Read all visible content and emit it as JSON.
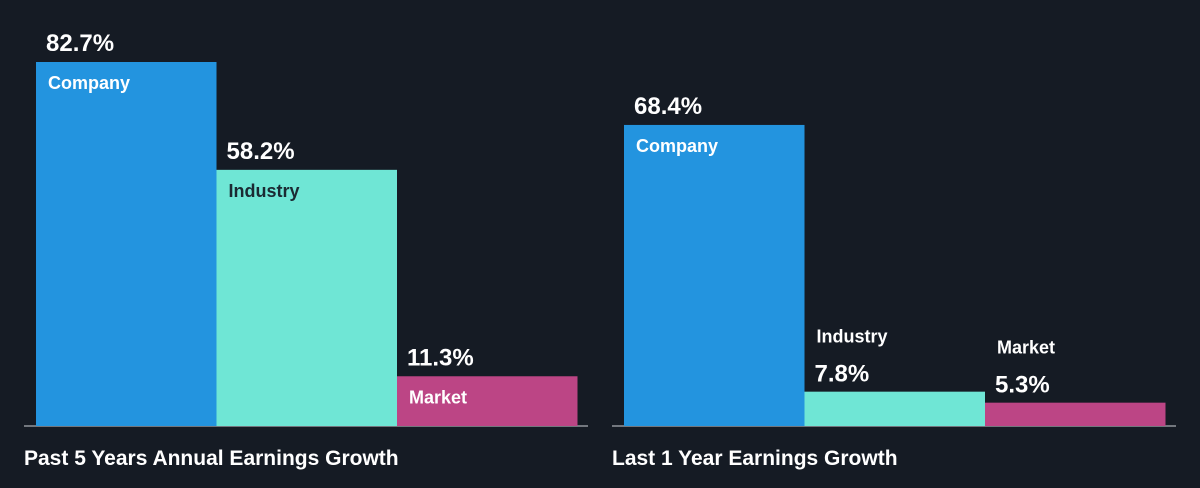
{
  "chart_data": [
    {
      "type": "bar",
      "title": "Past 5 Years Annual Earnings Growth",
      "categories": [
        "Company",
        "Industry",
        "Market"
      ],
      "values": [
        82.7,
        58.2,
        11.3
      ],
      "value_labels": [
        "82.7%",
        "58.2%",
        "11.3%"
      ],
      "colors": [
        "#2394df",
        "#6fe6d5",
        "#bc4585"
      ],
      "label_colors": [
        "#ffffff",
        "#1b2a33",
        "#ffffff"
      ],
      "ylim": [
        0,
        82.7
      ],
      "grid": false,
      "legend": "none"
    },
    {
      "type": "bar",
      "title": "Last 1 Year Earnings Growth",
      "categories": [
        "Company",
        "Industry",
        "Market"
      ],
      "values": [
        68.4,
        7.8,
        5.3
      ],
      "value_labels": [
        "68.4%",
        "7.8%",
        "5.3%"
      ],
      "colors": [
        "#2394df",
        "#6fe6d5",
        "#bc4585"
      ],
      "label_colors": [
        "#ffffff",
        "#1b2a33",
        "#ffffff"
      ],
      "ylim": [
        0,
        82.7
      ],
      "grid": false,
      "legend": "none"
    }
  ]
}
